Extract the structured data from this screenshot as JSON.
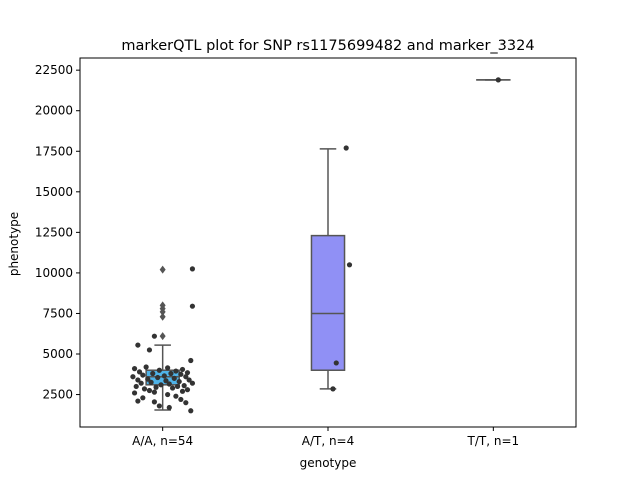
{
  "chart_data": {
    "type": "box",
    "title": "markerQTL plot for SNP rs1175699482 and marker_3324",
    "xlabel": "genotype",
    "ylabel": "phenotype",
    "ylim": [
      500,
      23250
    ],
    "yticks": [
      2500,
      5000,
      7500,
      10000,
      12500,
      15000,
      17500,
      20000,
      22500
    ],
    "ytick_labels": [
      "2500",
      "5000",
      "7500",
      "10000",
      "12500",
      "15000",
      "17500",
      "20000",
      "22500"
    ],
    "categories": [
      "A/A, n=54",
      "A/T, n=4",
      "T/T, n=1"
    ],
    "boxes": [
      {
        "category": "A/A, n=54",
        "color": "#4fb3e8",
        "q1": 3100,
        "median": 3600,
        "q3": 4000,
        "whisker_low": 1550,
        "whisker_high": 5550,
        "outliers": [
          10200,
          8000,
          7800,
          7600,
          7300,
          6100
        ]
      },
      {
        "category": "A/T, n=4",
        "color": "#9090f5",
        "q1": 4000,
        "median": 7500,
        "q3": 12300,
        "whisker_low": 2850,
        "whisker_high": 17650,
        "outliers": []
      },
      {
        "category": "T/T, n=1",
        "color": "#9090f5",
        "q1": 21900,
        "median": 21900,
        "q3": 21900,
        "whisker_low": 21900,
        "whisker_high": 21900,
        "outliers": []
      }
    ],
    "points": [
      {
        "category": "A/A, n=54",
        "values": [
          10250,
          7950,
          6100,
          5550,
          5250,
          4600,
          4200,
          4150,
          4100,
          4050,
          4000,
          3950,
          3900,
          3850,
          3800,
          3800,
          3750,
          3700,
          3650,
          3600,
          3600,
          3550,
          3500,
          3450,
          3400,
          3400,
          3350,
          3300,
          3250,
          3200,
          3200,
          3150,
          3100,
          3050,
          3000,
          3000,
          2950,
          2900,
          2850,
          2800,
          2750,
          2700,
          2650,
          2600,
          2500,
          2400,
          2300,
          2200,
          2100,
          2050,
          2000,
          1800,
          1700,
          1500
        ],
        "jitter": [
          0.18,
          0.18,
          -0.05,
          -0.15,
          -0.08,
          0.17,
          -0.1,
          0.03,
          -0.17,
          0.12,
          -0.02,
          0.08,
          -0.14,
          0.15,
          -0.06,
          0.05,
          0.11,
          -0.12,
          0.01,
          -0.18,
          0.14,
          -0.03,
          0.07,
          -0.09,
          0.16,
          -0.15,
          0.02,
          0.1,
          -0.07,
          0.18,
          -0.13,
          0.04,
          -0.01,
          0.13,
          -0.16,
          0.09,
          -0.04,
          0.06,
          -0.11,
          0.15,
          -0.08,
          0.12,
          -0.05,
          -0.17,
          0.03,
          0.08,
          -0.12,
          0.11,
          -0.15,
          -0.05,
          0.14,
          -0.02,
          0.04,
          0.17
        ]
      },
      {
        "category": "A/T, n=4",
        "values": [
          17700,
          10500,
          4450,
          2850
        ],
        "jitter": [
          0.11,
          0.13,
          0.05,
          0.03
        ]
      },
      {
        "category": "T/T, n=1",
        "values": [
          21900
        ],
        "jitter": [
          0.03
        ]
      }
    ]
  }
}
